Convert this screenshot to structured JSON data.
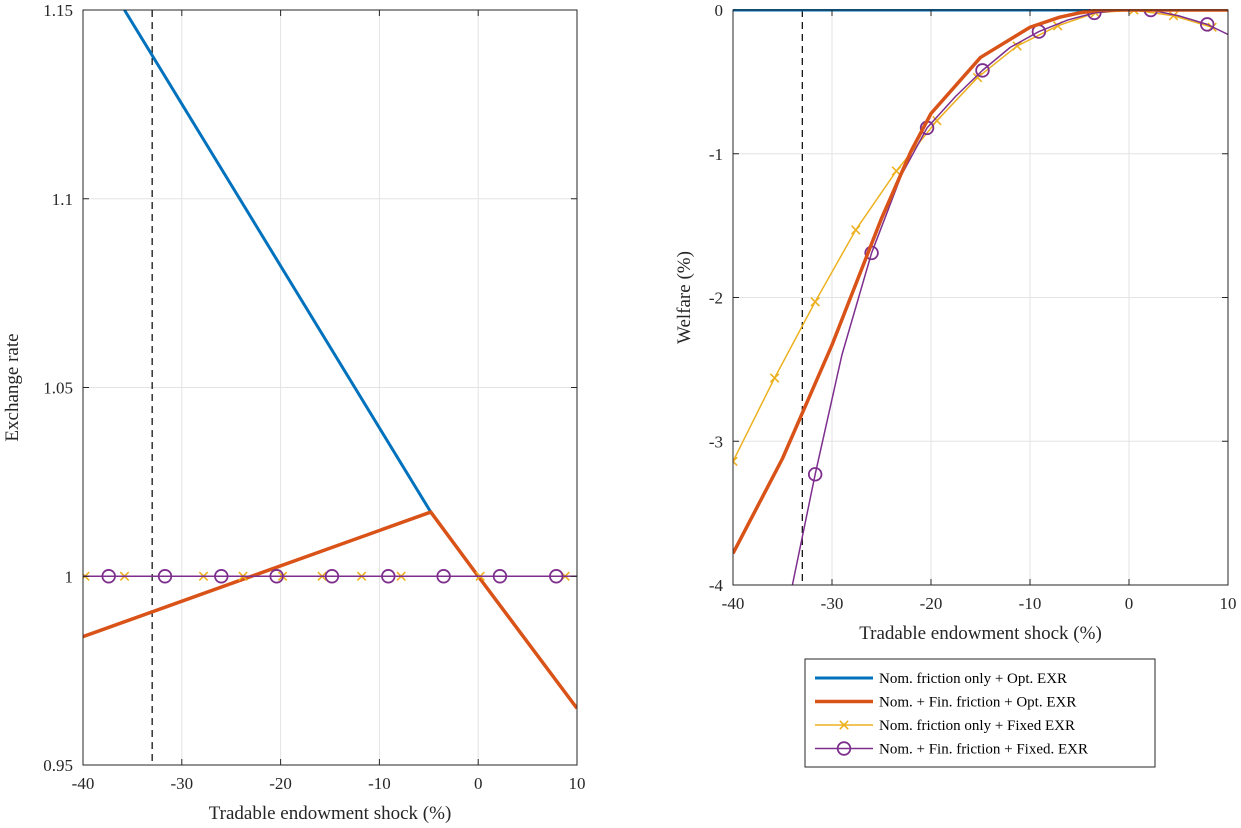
{
  "chart_data": [
    {
      "type": "line",
      "title": "",
      "xlabel": "Tradable endowment shock (%)",
      "ylabel": "Exchange rate",
      "xlim": [
        -40,
        10
      ],
      "ylim": [
        0.95,
        1.15
      ],
      "xticks": [
        -40,
        -30,
        -20,
        -10,
        0,
        10
      ],
      "xtick_labels": [
        "-40",
        "-30",
        "-20",
        "-10",
        "0",
        "10"
      ],
      "yticks": [
        0.95,
        1,
        1.05,
        1.1,
        1.15
      ],
      "ytick_labels": [
        "0.95",
        "1",
        "1.05",
        "1.1",
        "1.15"
      ],
      "grid": true,
      "vline_x": -33,
      "series": [
        {
          "name": "Nom. friction only + Opt. EXR",
          "color": "#0072BD",
          "marker": "none",
          "x": [
            -35.8,
            -4.8
          ],
          "y": [
            1.15,
            1.017
          ]
        },
        {
          "name": "Nom. + Fin. friction + Opt. EXR",
          "color": "#D95319",
          "marker": "none",
          "x": [
            -40,
            -4.8,
            0,
            10
          ],
          "y": [
            0.984,
            1.017,
            1.0,
            0.965
          ]
        },
        {
          "name": "Nom. friction only + Fixed EXR",
          "color": "#EDB120",
          "marker": "x",
          "x": [
            -40,
            10
          ],
          "y": [
            1.0,
            1.0
          ],
          "marker_x": [
            -39.8,
            -35.8,
            -27.8,
            -23.8,
            -19.8,
            -15.8,
            -11.8,
            -7.8,
            0.2,
            8.8
          ]
        },
        {
          "name": "Nom. + Fin. friction + Fixed. EXR",
          "color": "#7E2F8E",
          "marker": "o",
          "x": [
            -40,
            10
          ],
          "y": [
            1.0,
            1.0
          ],
          "marker_x": [
            -37.4,
            -31.7,
            -26.0,
            -20.4,
            -14.8,
            -9.1,
            -3.5,
            2.2,
            7.9
          ]
        }
      ]
    },
    {
      "type": "line",
      "title": "",
      "xlabel": "Tradable endowment shock (%)",
      "ylabel": "Welfare (%)",
      "xlim": [
        -40,
        10
      ],
      "ylim": [
        -4,
        0
      ],
      "xticks": [
        -40,
        -30,
        -20,
        -10,
        0,
        10
      ],
      "xtick_labels": [
        "-40",
        "-30",
        "-20",
        "-10",
        "0",
        "10"
      ],
      "yticks": [
        -4,
        -3,
        -2,
        -1,
        0
      ],
      "ytick_labels": [
        "-4",
        "-3",
        "-2",
        "-1",
        "0"
      ],
      "grid": true,
      "vline_x": -33,
      "legend": "below-right-panel",
      "series": [
        {
          "name": "Nom. friction only + Opt. EXR",
          "color": "#0072BD",
          "marker": "none",
          "x": [
            -40,
            10
          ],
          "y": [
            0,
            0
          ]
        },
        {
          "name": "Nom. + Fin. friction + Opt. EXR",
          "color": "#D95319",
          "marker": "none",
          "x": [
            -40,
            -35,
            -30,
            -25,
            -22,
            -20,
            -15,
            -10,
            -7,
            -5,
            -3,
            0,
            5,
            10
          ],
          "y": [
            -3.78,
            -3.12,
            -2.33,
            -1.45,
            -0.98,
            -0.72,
            -0.33,
            -0.12,
            -0.05,
            -0.02,
            0,
            0,
            0,
            0
          ]
        },
        {
          "name": "Nom. friction only + Fixed EXR",
          "color": "#EDB120",
          "marker": "x",
          "x": [
            -40,
            -35.8,
            -31.7,
            -27.6,
            -23.5,
            -19.4,
            -15.3,
            -11.3,
            -7.2,
            -3.4,
            0.5,
            4.5,
            8.4
          ],
          "y": [
            -3.14,
            -2.56,
            -2.03,
            -1.53,
            -1.12,
            -0.77,
            -0.47,
            -0.25,
            -0.11,
            -0.02,
            0,
            -0.04,
            -0.12
          ]
        },
        {
          "name": "Nom. + Fin. friction + Fixed. EXR",
          "color": "#7E2F8E",
          "marker": "o",
          "x": [
            -34,
            -31.7,
            -29,
            -26.0,
            -23,
            -20.4,
            -17.5,
            -14.8,
            -12,
            -9.1,
            -6.2,
            -3.5,
            -0.6,
            2.2,
            5,
            7.9,
            10
          ],
          "y": [
            -4.0,
            -3.23,
            -2.4,
            -1.69,
            -1.15,
            -0.82,
            -0.6,
            -0.42,
            -0.26,
            -0.15,
            -0.07,
            -0.02,
            0,
            0,
            -0.04,
            -0.1,
            -0.17
          ],
          "marker_x": [
            -31.7,
            -26.0,
            -20.4,
            -14.8,
            -9.1,
            -3.5,
            2.2,
            7.9
          ],
          "marker_y": [
            -3.23,
            -1.69,
            -0.82,
            -0.42,
            -0.15,
            -0.02,
            0,
            -0.1
          ]
        }
      ]
    }
  ],
  "legend": {
    "items": [
      {
        "label": "Nom. friction only + Opt. EXR",
        "color": "#0072BD",
        "marker": "none",
        "width": 3
      },
      {
        "label": "Nom. + Fin. friction + Opt. EXR",
        "color": "#D95319",
        "marker": "none",
        "width": 3.5
      },
      {
        "label": "Nom. friction only + Fixed EXR",
        "color": "#EDB120",
        "marker": "x",
        "width": 1.5
      },
      {
        "label": "Nom. + Fin. friction + Fixed. EXR",
        "color": "#7E2F8E",
        "marker": "o",
        "width": 1.5
      }
    ]
  }
}
